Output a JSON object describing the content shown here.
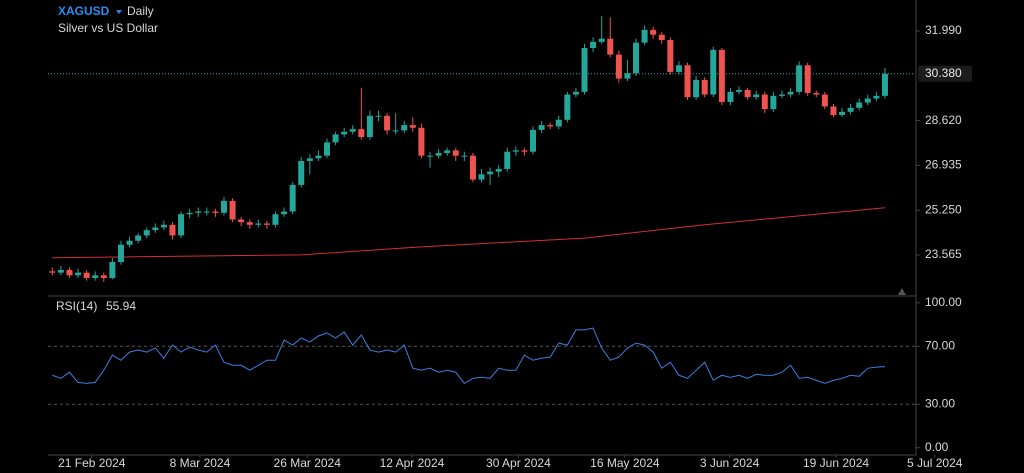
{
  "chart_data": [
    {
      "type": "candlestick",
      "title": "XAGUSD",
      "interval": "Daily",
      "subtitle": "Silver vs US Dollar",
      "up_color": "#26a69a",
      "down_color": "#ef5350",
      "xlim": [
        -0.5,
        100.5
      ],
      "ylim": [
        22.06,
        33.155
      ],
      "yticks": [
        23.565,
        {
          "value": 25.25,
          "label": "25.250"
        },
        26.935,
        {
          "value": 28.62,
          "label": "28.620"
        },
        {
          "value": 31.99,
          "label": "31.990"
        }
      ],
      "current_price": {
        "value": 30.38,
        "label": "30.380"
      },
      "open": [
        22.95,
        22.9,
        23.0,
        22.8,
        22.9,
        22.7,
        22.8,
        22.7,
        23.3,
        23.95,
        24.1,
        24.3,
        24.5,
        24.6,
        24.7,
        24.3,
        25.1,
        25.15,
        25.2,
        25.2,
        25.15,
        25.6,
        24.9,
        24.8,
        24.7,
        24.75,
        24.7,
        25.1,
        25.2,
        26.2,
        27.1,
        27.2,
        27.3,
        27.8,
        28.1,
        28.2,
        28.3,
        28.0,
        28.8,
        28.8,
        28.25,
        28.25,
        28.45,
        28.35,
        27.3,
        27.3,
        27.4,
        27.5,
        27.3,
        27.3,
        26.4,
        26.6,
        26.7,
        26.8,
        27.45,
        27.5,
        27.45,
        28.27,
        28.45,
        28.4,
        28.65,
        29.6,
        29.7,
        31.35,
        31.58,
        31.7,
        31.1,
        30.2,
        30.4,
        31.55,
        32.03,
        31.85,
        31.65,
        30.45,
        30.7,
        29.5,
        30.15,
        29.6,
        31.28,
        29.32,
        29.7,
        29.77,
        29.5,
        29.6,
        29.05,
        29.55,
        29.6,
        29.7,
        30.7,
        29.66,
        29.6,
        29.15,
        28.83,
        28.95,
        29.1,
        29.3,
        29.45,
        29.55
      ],
      "high": [
        23.1,
        23.15,
        23.1,
        23.05,
        23.0,
        22.95,
        22.9,
        23.45,
        24.1,
        24.25,
        24.4,
        24.6,
        24.75,
        24.85,
        24.8,
        25.2,
        25.3,
        25.35,
        25.35,
        25.3,
        25.75,
        25.7,
        25.0,
        24.9,
        24.9,
        24.85,
        25.2,
        25.35,
        26.3,
        27.25,
        27.35,
        27.5,
        27.95,
        28.2,
        28.35,
        28.45,
        29.85,
        29.0,
        29.0,
        28.9,
        28.9,
        28.6,
        28.75,
        28.5,
        27.45,
        27.55,
        27.6,
        27.6,
        27.45,
        27.4,
        26.8,
        26.85,
        26.95,
        27.6,
        27.65,
        27.6,
        28.4,
        28.6,
        28.55,
        28.8,
        29.7,
        29.85,
        31.5,
        31.75,
        32.55,
        32.5,
        31.25,
        30.9,
        31.7,
        32.2,
        32.15,
        31.95,
        31.75,
        30.85,
        30.8,
        30.3,
        30.25,
        31.4,
        31.35,
        29.85,
        29.9,
        29.85,
        29.75,
        29.7,
        29.7,
        29.75,
        29.85,
        30.85,
        30.8,
        29.75,
        29.7,
        29.25,
        29.1,
        29.25,
        29.45,
        29.6,
        29.7,
        30.6
      ],
      "low": [
        22.8,
        22.8,
        22.7,
        22.7,
        22.6,
        22.6,
        22.55,
        22.65,
        23.2,
        23.85,
        24.0,
        24.2,
        24.4,
        24.5,
        24.15,
        24.2,
        24.95,
        25.0,
        25.05,
        25.0,
        25.05,
        24.8,
        24.65,
        24.55,
        24.6,
        24.55,
        24.6,
        25.0,
        25.1,
        26.1,
        26.6,
        27.1,
        27.2,
        27.7,
        28.0,
        28.1,
        27.9,
        27.9,
        28.6,
        28.1,
        28.1,
        28.15,
        28.2,
        27.2,
        26.85,
        27.2,
        27.3,
        27.1,
        27.1,
        26.3,
        26.3,
        26.2,
        26.5,
        26.7,
        27.3,
        27.3,
        27.35,
        28.15,
        28.3,
        28.3,
        28.55,
        29.5,
        29.6,
        31.2,
        31.5,
        31.0,
        30.05,
        30.1,
        30.3,
        31.45,
        31.7,
        31.5,
        30.35,
        30.35,
        29.4,
        29.4,
        29.5,
        29.5,
        29.2,
        29.2,
        29.6,
        29.4,
        29.4,
        28.9,
        28.95,
        29.45,
        29.5,
        29.6,
        29.55,
        29.5,
        29.05,
        28.75,
        28.75,
        28.85,
        29.0,
        29.2,
        29.35,
        29.45
      ],
      "close": [
        22.9,
        23.0,
        22.8,
        22.9,
        22.7,
        22.8,
        22.7,
        23.3,
        23.95,
        24.1,
        24.3,
        24.5,
        24.6,
        24.7,
        24.3,
        25.1,
        25.15,
        25.2,
        25.2,
        25.15,
        25.6,
        24.9,
        24.8,
        24.7,
        24.75,
        24.7,
        25.1,
        25.2,
        26.2,
        27.1,
        27.2,
        27.3,
        27.8,
        28.1,
        28.2,
        28.3,
        28.0,
        28.8,
        28.8,
        28.25,
        28.25,
        28.45,
        28.35,
        27.3,
        27.3,
        27.4,
        27.5,
        27.3,
        27.3,
        26.4,
        26.6,
        26.7,
        26.8,
        27.45,
        27.5,
        27.45,
        28.27,
        28.45,
        28.4,
        28.65,
        29.6,
        29.7,
        31.35,
        31.58,
        31.7,
        31.1,
        30.2,
        30.4,
        31.55,
        32.03,
        31.85,
        31.65,
        30.45,
        30.7,
        29.5,
        30.15,
        29.6,
        31.28,
        29.32,
        29.7,
        29.77,
        29.5,
        29.6,
        29.05,
        29.55,
        29.6,
        29.7,
        30.7,
        29.66,
        29.6,
        29.15,
        28.83,
        28.95,
        29.1,
        29.3,
        29.45,
        29.55,
        30.38
      ],
      "overlay_line": {
        "color": "#d32f2f",
        "x": [
          0,
          29,
          43,
          62,
          76,
          97
        ],
        "values": [
          23.46,
          23.57,
          23.87,
          24.2,
          24.7,
          25.34
        ]
      }
    },
    {
      "type": "line",
      "title": "RSI(14)",
      "last_value": 55.94,
      "color": "#3d7fe0",
      "xlim": [
        -0.5,
        100.5
      ],
      "ylim": [
        -5,
        104
      ],
      "yticks": [
        {
          "value": 0,
          "label": "0.00"
        },
        {
          "value": 30,
          "label": "30.00"
        },
        {
          "value": 70,
          "label": "70.00"
        },
        {
          "value": 100,
          "label": "100.00"
        }
      ],
      "dashed_levels": [
        30,
        70
      ],
      "xticks": [
        {
          "value": 4.6,
          "label": "21 Feb 2024"
        },
        {
          "value": 17.2,
          "label": "8 Mar 2024"
        },
        {
          "value": 29.7,
          "label": "26 Mar 2024"
        },
        {
          "value": 41.9,
          "label": "12 Apr 2024"
        },
        {
          "value": 54.3,
          "label": "30 Apr 2024"
        },
        {
          "value": 66.7,
          "label": "16 May 2024"
        },
        {
          "value": 78.9,
          "label": "3 Jun 2024"
        },
        {
          "value": 91.3,
          "label": "19 Jun 2024"
        },
        {
          "value": 102.8,
          "label": "5 Jul 2024"
        }
      ],
      "values": [
        50.0,
        47.9,
        52.1,
        45.1,
        44.4,
        45.1,
        53.5,
        63.9,
        60.4,
        66.0,
        67.4,
        66.0,
        68.8,
        61.8,
        70.8,
        66.0,
        69.4,
        67.4,
        66.0,
        70.8,
        59.0,
        56.9,
        56.9,
        53.5,
        56.9,
        60.4,
        60.4,
        74.3,
        70.8,
        75.7,
        72.9,
        77.1,
        79.2,
        75.7,
        79.9,
        70.8,
        77.8,
        67.4,
        66.0,
        67.4,
        66.0,
        70.8,
        54.9,
        53.5,
        54.9,
        52.1,
        53.5,
        52.1,
        44.4,
        47.9,
        48.6,
        47.9,
        54.9,
        53.5,
        53.5,
        63.9,
        60.4,
        61.8,
        62.5,
        72.2,
        70.8,
        81.3,
        81.3,
        82.6,
        68.8,
        60.4,
        62.5,
        68.8,
        72.2,
        70.8,
        66.0,
        54.9,
        59.0,
        50.0,
        47.9,
        53.5,
        59.0,
        46.5,
        50.0,
        48.6,
        50.0,
        47.9,
        50.7,
        50.0,
        50.0,
        52.1,
        56.9,
        47.9,
        48.6,
        46.5,
        44.4,
        46.5,
        47.9,
        50.0,
        49.3,
        54.9,
        55.6,
        55.94
      ]
    }
  ]
}
